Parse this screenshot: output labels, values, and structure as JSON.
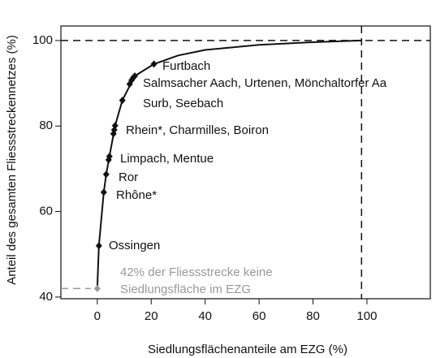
{
  "chart_data": {
    "type": "scatter",
    "xlabel": "Siedlungsflächenanteile am EZG (%)",
    "ylabel": "Anteil des gesamten Fliessstreckennetzes (%)",
    "xlim": [
      -13.5,
      123.5
    ],
    "ylim": [
      39.6,
      103.4
    ],
    "xticks": [
      0,
      20,
      40,
      60,
      80,
      100
    ],
    "yticks": [
      40,
      60,
      80,
      100
    ],
    "color": "#111111",
    "series": [
      {
        "x": [
          0.6,
          2.4,
          3.3,
          4.2,
          4.5,
          6,
          6.3,
          6.6,
          9.3,
          12,
          12.7,
          13.3,
          13.9,
          21
        ],
        "values": [
          52,
          64.5,
          68.7,
          72.1,
          72.9,
          78.2,
          79.1,
          80.1,
          86,
          89.8,
          90.7,
          91.3,
          91.7,
          94.5
        ]
      }
    ],
    "highlight": {
      "x": 0,
      "value": 42,
      "color": "#999999"
    },
    "curve": {
      "x": [
        0,
        0.6,
        2.4,
        3.3,
        4.5,
        6.6,
        9.3,
        13.9,
        21,
        30,
        40,
        60,
        80,
        98
      ],
      "y": [
        42,
        52,
        64.5,
        68.7,
        72.9,
        80.1,
        86,
        91.7,
        94.5,
        96.5,
        97.8,
        99,
        99.6,
        100
      ]
    },
    "ref_x": 98,
    "ref_y": 100,
    "annotations": [
      "Furtbach",
      "Salmsacher Aach, Urtenen, Mönchaltorfer Aa",
      "Surb, Seebach",
      "Rhein*, Charmilles, Boiron",
      "Limpach, Mentue",
      "Ror",
      "Rhône*",
      "Ossingen"
    ],
    "grey_annotations": [
      "42% der Fliessstrecke keine",
      "Siedlungsfläche im EZG"
    ]
  }
}
